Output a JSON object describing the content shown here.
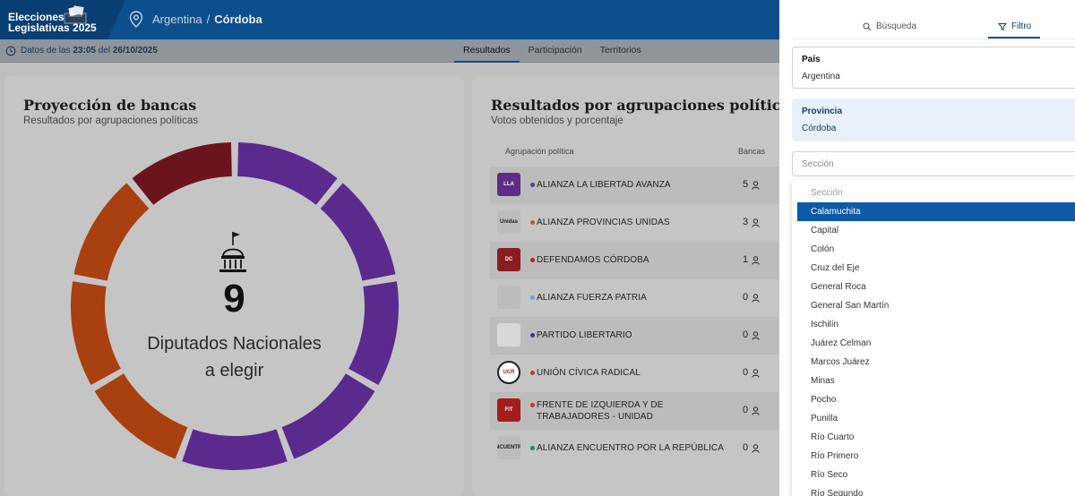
{
  "header": {
    "logo_line1": "Elecciones",
    "logo_line2": "Legislativas 2025",
    "breadcrumb_country": "Argentina",
    "breadcrumb_sep": "/",
    "breadcrumb_province": "Córdoba"
  },
  "subbar": {
    "datos_prefix": "Datos de las",
    "time": "23:05",
    "del": "del",
    "date": "26/10/2025",
    "tabs": [
      "Resultados",
      "Participación",
      "Territorios"
    ],
    "active_tab": "Resultados"
  },
  "seats_card": {
    "title": "Proyección de bancas",
    "subtitle": "Resultados por agrupaciones políticas",
    "total": "9",
    "label_line1": "Diputados Nacionales",
    "label_line2": "a elegir"
  },
  "chart_data": {
    "type": "pie",
    "total_seats": 9,
    "segments": [
      {
        "party": "ALIANZA LA LIBERTAD AVANZA",
        "seats": 5,
        "color": "#5a2a8e"
      },
      {
        "party": "ALIANZA PROVINCIAS UNIDAS",
        "seats": 3,
        "color": "#a9400f"
      },
      {
        "party": "DEFENDAMOS CÓRDOBA",
        "seats": 1,
        "color": "#6b141e"
      }
    ]
  },
  "results_card": {
    "title": "Resultados por agrupaciones políticas",
    "subtitle": "Votos obtenidos y porcentaje",
    "col_party": "Agrupación política",
    "col_seats": "Bancas",
    "rows": [
      {
        "name": "ALIANZA LA LIBERTAD AVANZA",
        "seats": "5",
        "dot": "#5b3a9b",
        "logo_bg": "#5b2d86",
        "logo_text": "LLA"
      },
      {
        "name": "ALIANZA PROVINCIAS UNIDAS",
        "seats": "3",
        "dot": "#c75a1a",
        "logo_bg": "#bcbcbc",
        "logo_text": "Unidas"
      },
      {
        "name": "DEFENDAMOS CÓRDOBA",
        "seats": "1",
        "dot": "#a8262f",
        "logo_bg": "#8a1c24",
        "logo_text": "DC"
      },
      {
        "name": "ALIANZA FUERZA PATRIA",
        "seats": "0",
        "dot": "#6ea4d6",
        "logo_bg": "#bcbcbc",
        "logo_text": ""
      },
      {
        "name": "PARTIDO LIBERTARIO",
        "seats": "0",
        "dot": "#3a3a8e",
        "logo_bg": "#d8d8d8",
        "logo_text": ""
      },
      {
        "name": "UNIÓN CÍVICA RADICAL",
        "seats": "0",
        "dot": "#c0392b",
        "logo_bg": "#ffffff",
        "logo_text": "UCR"
      },
      {
        "name": "FRENTE DE IZQUIERDA Y DE TRABAJADORES - UNIDAD",
        "seats": "0",
        "dot": "#c0392b",
        "logo_bg": "#a31d1d",
        "logo_text": "FIT"
      },
      {
        "name": "ALIANZA ENCUENTRO POR LA REPÚBLICA",
        "seats": "0",
        "dot": "#1e8a5a",
        "logo_bg": "#bcbcbc",
        "logo_text": "ENCUENTRO"
      }
    ]
  },
  "filter_panel": {
    "tab_search": "Búsqueda",
    "tab_filter": "Filtro",
    "pais_label": "País",
    "pais_value": "Argentina",
    "provincia_label": "Provincia",
    "provincia_value": "Córdoba",
    "seccion_placeholder": "Sección",
    "seccion_options": [
      "Sección",
      "Calamuchita",
      "Capital",
      "Colón",
      "Cruz del Eje",
      "General Roca",
      "General San Martín",
      "Ischilín",
      "Juárez Celman",
      "Marcos Juárez",
      "Minas",
      "Pocho",
      "Punilla",
      "Río Cuarto",
      "Río Primero",
      "Río Seco",
      "Río Segundo"
    ],
    "selected_option": "Calamuchita"
  }
}
